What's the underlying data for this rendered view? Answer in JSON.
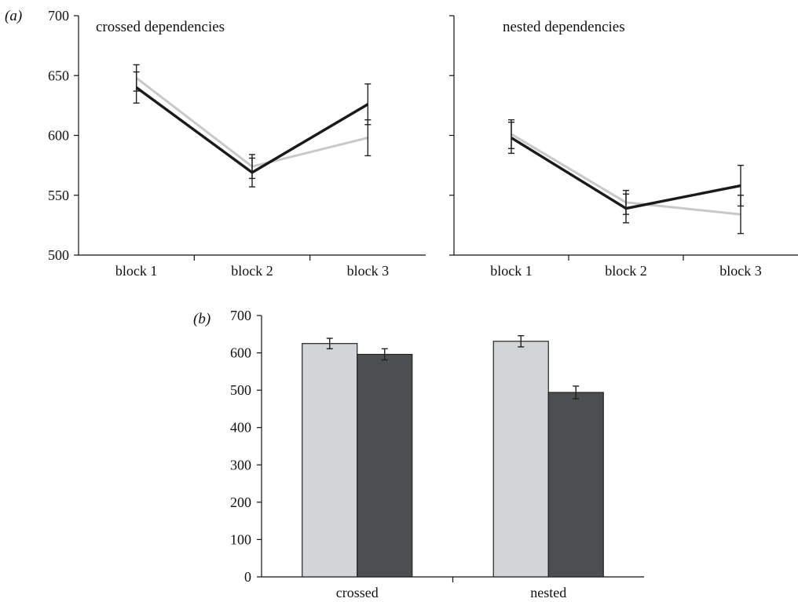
{
  "figure": {
    "panel_a_label": "(a)",
    "panel_b_label": "(b)"
  },
  "chart_data": [
    {
      "type": "line",
      "panel": "(a)",
      "title": "crossed dependencies",
      "categories": [
        "block 1",
        "block 2",
        "block 3"
      ],
      "ylim": [
        500,
        700
      ],
      "yticks": [
        500,
        550,
        600,
        650,
        700
      ],
      "series": [
        {
          "color": "#c8c8c8",
          "values": [
            648,
            574,
            598
          ],
          "errors": [
            11,
            10,
            15
          ]
        },
        {
          "color": "#1a1a1a",
          "values": [
            640,
            569,
            626
          ],
          "errors": [
            13,
            12,
            17
          ]
        }
      ]
    },
    {
      "type": "line",
      "panel": "(a)",
      "title": "nested dependencies",
      "categories": [
        "block 1",
        "block 2",
        "block 3"
      ],
      "ylim": [
        500,
        700
      ],
      "yticks": [
        500,
        550,
        600,
        650,
        700
      ],
      "series": [
        {
          "color": "#c8c8c8",
          "values": [
            601,
            544,
            534
          ],
          "errors": [
            12,
            10,
            16
          ]
        },
        {
          "color": "#1a1a1a",
          "values": [
            598,
            539,
            558
          ],
          "errors": [
            13,
            12,
            17
          ]
        }
      ]
    },
    {
      "type": "bar",
      "panel": "(b)",
      "categories": [
        "crossed",
        "nested"
      ],
      "ylim": [
        0,
        700
      ],
      "yticks": [
        0,
        100,
        200,
        300,
        400,
        500,
        600,
        700
      ],
      "series": [
        {
          "color": "#d3d4d6",
          "values": [
            625,
            631
          ],
          "errors": [
            14,
            15
          ]
        },
        {
          "color": "#4d4e50",
          "values": [
            596,
            494
          ],
          "errors": [
            15,
            17
          ]
        }
      ]
    }
  ]
}
